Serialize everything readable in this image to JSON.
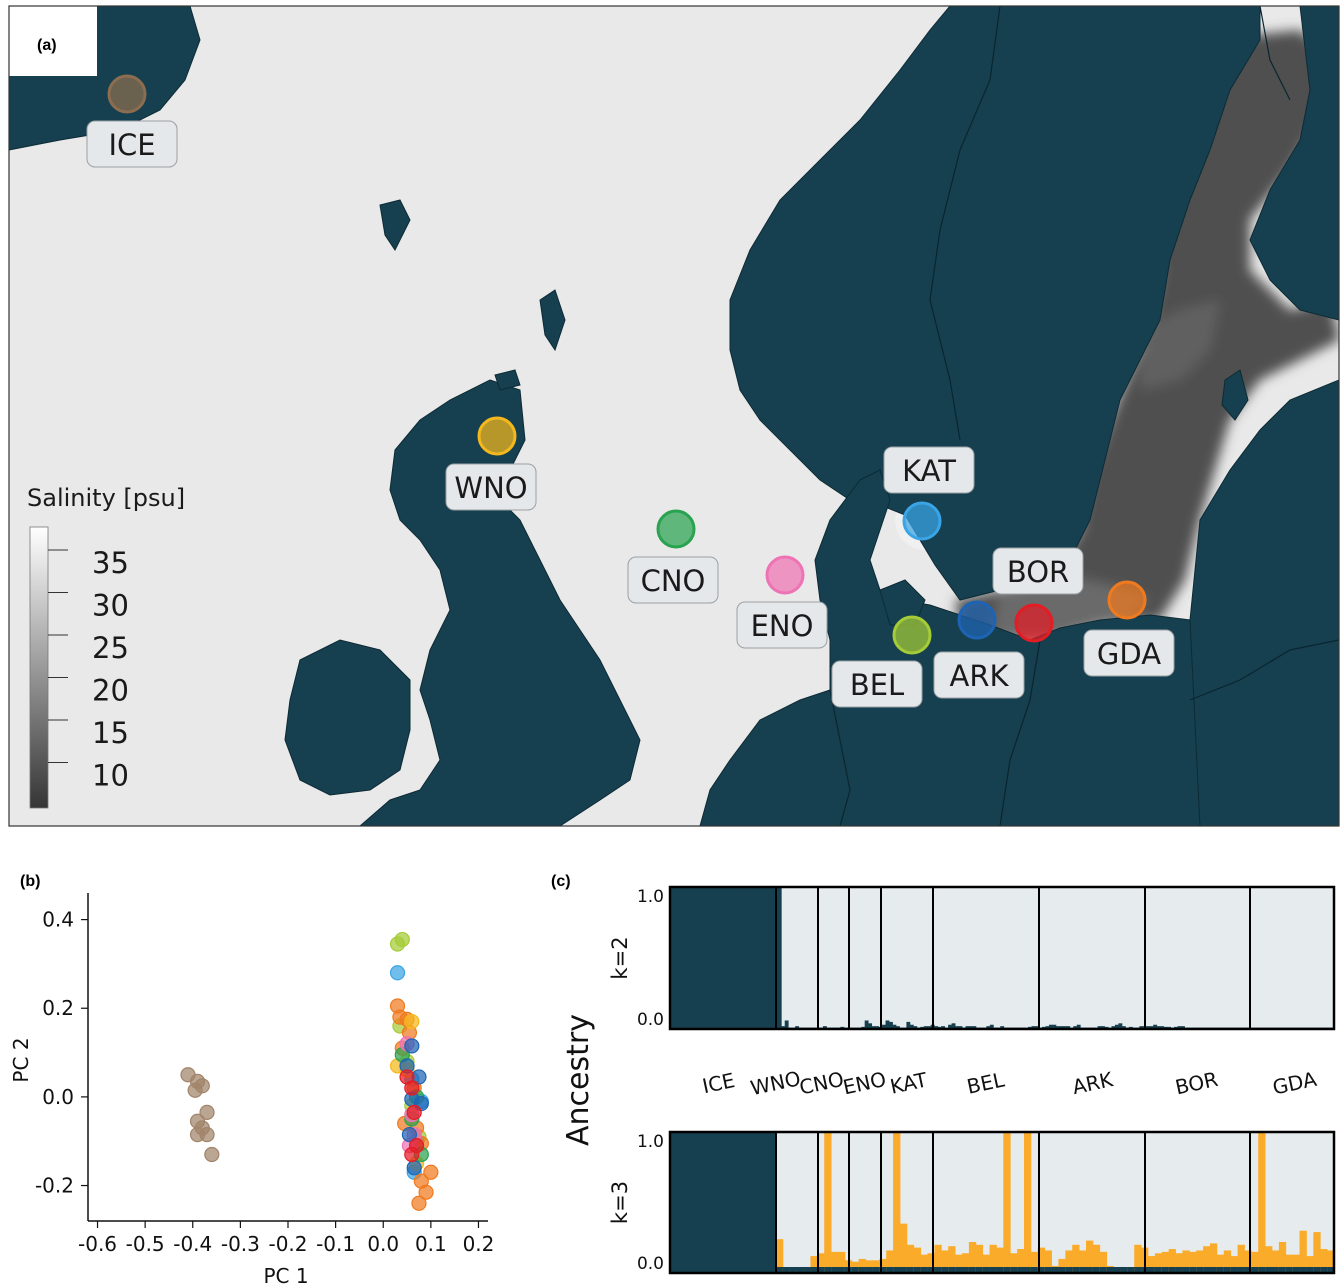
{
  "panel_a": {
    "label": "(a)",
    "legend": {
      "title": "Salinity [psu]",
      "ticks": [
        "35",
        "30",
        "25",
        "20",
        "15",
        "10"
      ],
      "colors": [
        "#ffffff",
        "#353535"
      ]
    },
    "sites": [
      {
        "code": "ICE",
        "color": "#8c6d4f"
      },
      {
        "code": "WNO",
        "color": "#f5b81c"
      },
      {
        "code": "CNO",
        "color": "#2aa350"
      },
      {
        "code": "ENO",
        "color": "#ee73b4"
      },
      {
        "code": "KAT",
        "color": "#3aa5e6"
      },
      {
        "code": "BEL",
        "color": "#a5cc36"
      },
      {
        "code": "ARK",
        "color": "#1e64b4"
      },
      {
        "code": "BOR",
        "color": "#e41c24"
      },
      {
        "code": "GDA",
        "color": "#f07a1e"
      }
    ],
    "colors": {
      "land": "#16404f",
      "sea": "#ebebeb",
      "baltic": "#4f4f4f"
    }
  },
  "chart_data": [
    {
      "panel": "(b)",
      "type": "scatter",
      "xlabel": "PC 1",
      "ylabel": "PC 2",
      "xlim": [
        -0.62,
        0.22
      ],
      "ylim": [
        -0.28,
        0.46
      ],
      "xticks": [
        "-0.6",
        "-0.5",
        "-0.4",
        "-0.3",
        "-0.2",
        "-0.1",
        "0.0",
        "0.1",
        "0.2"
      ],
      "yticks": [
        "0.4",
        "0.2",
        "0.0",
        "-0.2"
      ],
      "series": [
        {
          "name": "ICE",
          "color": "#a1846a",
          "points": [
            [
              -0.41,
              0.05
            ],
            [
              -0.39,
              0.035
            ],
            [
              -0.38,
              0.025
            ],
            [
              -0.395,
              0.015
            ],
            [
              -0.37,
              -0.035
            ],
            [
              -0.39,
              -0.055
            ],
            [
              -0.38,
              -0.07
            ],
            [
              -0.37,
              -0.085
            ],
            [
              -0.39,
              -0.085
            ],
            [
              -0.36,
              -0.13
            ]
          ]
        },
        {
          "name": "BEL",
          "color": "#a5cc36",
          "points": [
            [
              0.03,
              0.345
            ],
            [
              0.04,
              0.355
            ],
            [
              0.035,
              0.16
            ],
            [
              0.05,
              0.08
            ],
            [
              0.06,
              -0.02
            ],
            [
              0.075,
              -0.09
            ]
          ]
        },
        {
          "name": "KAT",
          "color": "#3aa5e6",
          "points": [
            [
              0.03,
              0.28
            ],
            [
              0.06,
              0.04
            ],
            [
              0.08,
              -0.01
            ],
            [
              0.07,
              -0.1
            ],
            [
              0.065,
              -0.17
            ]
          ]
        },
        {
          "name": "GDA",
          "color": "#f07a1e",
          "points": [
            [
              0.03,
              0.205
            ],
            [
              0.035,
              0.18
            ],
            [
              0.05,
              0.175
            ],
            [
              0.055,
              0.145
            ],
            [
              0.04,
              0.11
            ],
            [
              0.065,
              0.02
            ],
            [
              0.07,
              -0.07
            ],
            [
              0.08,
              -0.105
            ],
            [
              0.1,
              -0.17
            ],
            [
              0.08,
              -0.19
            ],
            [
              0.09,
              -0.215
            ],
            [
              0.075,
              -0.24
            ],
            [
              0.045,
              -0.06
            ]
          ]
        },
        {
          "name": "WNO",
          "color": "#f5b81c",
          "points": [
            [
              0.03,
              0.07
            ],
            [
              0.06,
              0.17
            ],
            [
              0.05,
              0.06
            ],
            [
              0.07,
              -0.15
            ]
          ]
        },
        {
          "name": "CNO",
          "color": "#2aa350",
          "points": [
            [
              0.04,
              0.095
            ],
            [
              0.07,
              0.0
            ],
            [
              0.06,
              -0.05
            ],
            [
              0.08,
              -0.13
            ]
          ]
        },
        {
          "name": "ENO",
          "color": "#ee73b4",
          "points": [
            [
              0.05,
              0.12
            ],
            [
              0.06,
              -0.04
            ],
            [
              0.055,
              -0.11
            ],
            [
              0.065,
              -0.085
            ]
          ]
        },
        {
          "name": "ARK",
          "color": "#1e64b4",
          "points": [
            [
              0.06,
              0.115
            ],
            [
              0.05,
              0.07
            ],
            [
              0.075,
              0.045
            ],
            [
              0.06,
              -0.005
            ],
            [
              0.055,
              -0.085
            ],
            [
              0.065,
              -0.16
            ],
            [
              0.08,
              -0.015
            ]
          ]
        },
        {
          "name": "BOR",
          "color": "#e41c24",
          "points": [
            [
              0.05,
              0.045
            ],
            [
              0.06,
              0.02
            ],
            [
              0.065,
              -0.035
            ],
            [
              0.07,
              -0.11
            ],
            [
              0.06,
              -0.13
            ]
          ]
        }
      ]
    },
    {
      "panel": "(c)",
      "type": "bar",
      "ylabel": "Ancestry",
      "groups": [
        "ICE",
        "WNO",
        "CNO",
        "ENO",
        "KAT",
        "BEL",
        "ARK",
        "BOR",
        "GDA"
      ],
      "panels": [
        {
          "label": "k=2",
          "ylim": [
            0,
            1
          ],
          "yticks": [
            "1.0",
            "0.0"
          ],
          "component_colors": [
            "#16404f",
            "#e6ebee"
          ],
          "component_k2": [
            1,
            1,
            1,
            1,
            1,
            1,
            1,
            1,
            1,
            1,
            1,
            1,
            1,
            1,
            1,
            1,
            1,
            1,
            1,
            1,
            1,
            1,
            1,
            1,
            1,
            1,
            1,
            1,
            1,
            1,
            1,
            1,
            0.02,
            0.06,
            0.01,
            0.01,
            0.02,
            0.01,
            0.01,
            0.01,
            0.01,
            0.01,
            0.01,
            0.01,
            0.02,
            0.01,
            0.01,
            0.01,
            0.01,
            0.015,
            0.01,
            0.01,
            0.01,
            0.01,
            0.01,
            0.015,
            0.06,
            0.04,
            0.02,
            0.02,
            0.015,
            0.03,
            0.06,
            0.05,
            0.03,
            0.02,
            0.01,
            0.01,
            0.05,
            0.03,
            0.02,
            0.01,
            0.015,
            0.02,
            0.02,
            0.03,
            0.02,
            0.015,
            0.02,
            0.01,
            0.03,
            0.04,
            0.02,
            0.02,
            0.01,
            0.02,
            0.02,
            0.02,
            0.01,
            0.01,
            0.01,
            0.02,
            0.03,
            0.01,
            0.01,
            0.02,
            0.01,
            0.01,
            0.01,
            0.01,
            0.01,
            0.01,
            0.01,
            0.015,
            0.02,
            0.02,
            0.01,
            0.015,
            0.02,
            0.03,
            0.03,
            0.02,
            0.02,
            0.02,
            0.02,
            0.01,
            0.02,
            0.03,
            0.01,
            0.01,
            0.01,
            0.01,
            0.01,
            0.02,
            0.02,
            0.015,
            0.01,
            0.02,
            0.03,
            0.04,
            0.02,
            0.01,
            0.015,
            0.01,
            0.01,
            0.02,
            0.02,
            0.02,
            0.02,
            0.03,
            0.02,
            0.02,
            0.015,
            0.015,
            0.01,
            0.015,
            0.02,
            0.02,
            0.01,
            0.01,
            0.01,
            0.01,
            0.01,
            0.01,
            0.01,
            0.01,
            0.01,
            0.01,
            0.01,
            0.01,
            0.01,
            0.01,
            0.01,
            0.01,
            0.01,
            0.01,
            0.01,
            0.01,
            0.01,
            0.01,
            0.01,
            0.01,
            0.01,
            0.01,
            0.01,
            0.01,
            0.01,
            0.01,
            0.01,
            0.01,
            0.01,
            0.01,
            0.01,
            0.01,
            0.01,
            0.01,
            0.01,
            0.01,
            0.01,
            0.01,
            0.01
          ]
        },
        {
          "label": "k=3",
          "ylim": [
            0,
            1
          ],
          "yticks": [
            "1.0",
            "0.0"
          ],
          "component_colors": [
            "#16404f",
            "#fbab2a",
            "#e6ebee"
          ],
          "component_k3": [
            0.24,
            0.04,
            0.02,
            0.02,
            0.03,
            0.12,
            0.14,
            1.0,
            0.15,
            0.15,
            0.09,
            0.08,
            0.1,
            0.09,
            0.09,
            0.1,
            0.16,
            1.0,
            0.35,
            0.2,
            0.18,
            0.13,
            0.14,
            0.2,
            0.16,
            0.19,
            0.13,
            0.14,
            0.22,
            0.2,
            0.13,
            0.2,
            0.18,
            1.0,
            0.14,
            0.17,
            1.0,
            0.15,
            0.18,
            0.16,
            0.05,
            0.1,
            0.16,
            0.2,
            0.16,
            0.23,
            0.2,
            0.15,
            0.05,
            0.02,
            0.03,
            0.04,
            0.2,
            0.18,
            0.12,
            0.14,
            0.15,
            0.17,
            0.14,
            0.16,
            0.15,
            0.16,
            0.19,
            0.21,
            0.13,
            0.16,
            0.12,
            0.2,
            0.16,
            0.15,
            1.0,
            0.19,
            0.16,
            0.22,
            0.13,
            0.13,
            0.3,
            0.12,
            0.29,
            0.17,
            0.16
          ]
        }
      ]
    }
  ]
}
